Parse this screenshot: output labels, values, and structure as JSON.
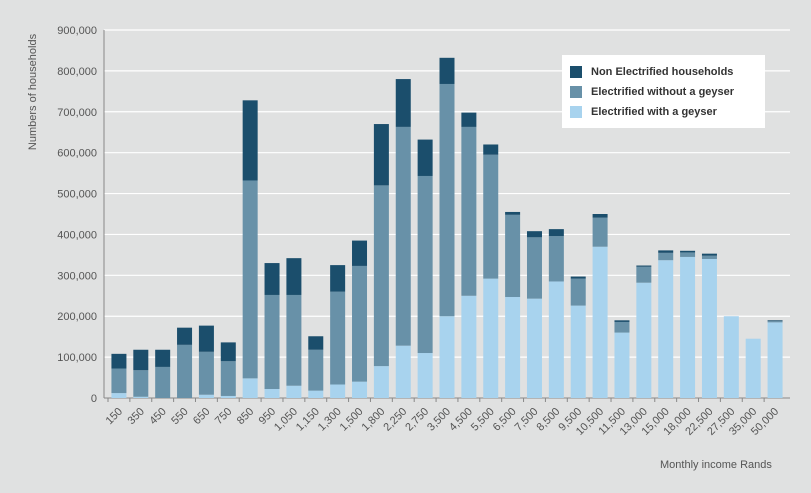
{
  "chart_data": {
    "type": "bar",
    "stacked": true,
    "xlabel": "Monthly income Rands",
    "ylabel": "Numbers of households",
    "ylim": [
      0,
      900000
    ],
    "yticks": [
      "0",
      "100,000",
      "200,000",
      "300,000",
      "400,000",
      "500,000",
      "600,000",
      "700,000",
      "800,000",
      "900,000"
    ],
    "grid": true,
    "legend_position": "top-right",
    "categories": [
      "150",
      "350",
      "450",
      "550",
      "650",
      "750",
      "850",
      "950",
      "1,050",
      "1,150",
      "1,300",
      "1,500",
      "1,800",
      "2,250",
      "2,750",
      "3,500",
      "4,500",
      "5,500",
      "6,500",
      "7,500",
      "8,500",
      "9,500",
      "10,500",
      "11,500",
      "13,000",
      "15,000",
      "18,000",
      "22,500",
      "27,500",
      "35,000",
      "50,000"
    ],
    "series": [
      {
        "name": "Electrified with a geyser",
        "color": "#a8d3ee",
        "values": [
          12000,
          3000,
          0,
          0,
          8000,
          5000,
          48000,
          22000,
          30000,
          18000,
          33000,
          40000,
          78000,
          128000,
          110000,
          200000,
          250000,
          292000,
          247000,
          243000,
          285000,
          226000,
          370000,
          160000,
          282000,
          337000,
          345000,
          340000,
          200000,
          145000,
          185000
        ]
      },
      {
        "name": "Electrified without a geyser",
        "color": "#6891a8",
        "values": [
          60000,
          65000,
          76000,
          130000,
          105000,
          85000,
          484000,
          230000,
          222000,
          100000,
          227000,
          283000,
          442000,
          535000,
          433000,
          568000,
          413000,
          303000,
          201000,
          150000,
          111000,
          66000,
          71000,
          26000,
          39000,
          18000,
          11000,
          8000,
          0,
          0,
          3000
        ]
      },
      {
        "name": "Non Electrified households",
        "color": "#1b4e6c",
        "values": [
          36000,
          50000,
          42000,
          42000,
          64000,
          46000,
          196000,
          78000,
          90000,
          33000,
          65000,
          62000,
          150000,
          117000,
          89000,
          64000,
          35000,
          25000,
          7000,
          15000,
          17000,
          5000,
          9000,
          4000,
          3000,
          6000,
          4000,
          5000,
          0,
          0,
          2000
        ]
      }
    ]
  }
}
